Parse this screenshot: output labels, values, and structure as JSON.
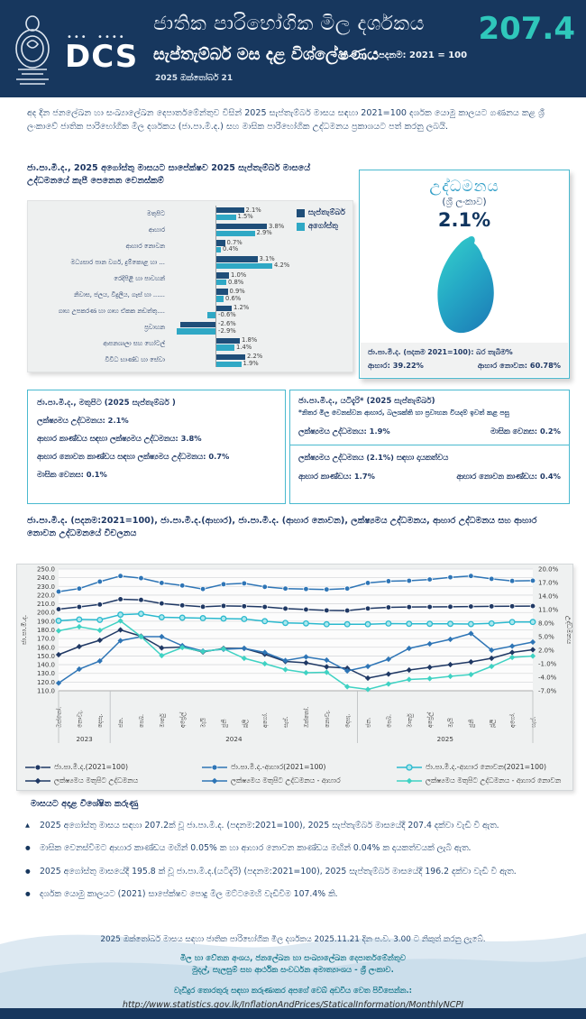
{
  "header": {
    "logo_text": "DCS",
    "title_line1": "ජාතික පාරිභෝගික මිල දර්ශකය",
    "title_line2": "සැප්තැම්බර් මස දළ විශ්ලේෂණය",
    "base_label": "පදනම: 2021 = 100",
    "date": "2025 ඔක්තෝබර් 21",
    "index_value": "207.4"
  },
  "intro": {
    "text": "අද දින ජනලේඛන හා සංඛ්‍යාලේඛන දෙපාර්තමේන්තුව විසින් 2025 සැප්තැම්බර් මාසය සඳහා 2021=100 දර්ශක යොමු කාලයට ගණනය කළ ශ්‍රී ලංකාවේ ජාතික පාරිභෝගික මිල දර්ශකය (ජා.පා.මි.ද.) සහ මාසික පාරිභෝගික උද්ධමනය ප්‍රකාශයට පත් කරනු ලබයි."
  },
  "bar_section": {
    "heading": "ජා.පා.මි.ද., 2025 අගෝස්තු මාසයට සාපේක්ෂව 2025 සැප්තැම්බර් මාසයේ උද්ධමනයේ කැපී පෙනෙන වෙනස්කම්",
    "legend": [
      "සැප්තැම්බර්",
      "අගෝස්තු"
    ],
    "colors": {
      "september": "#1f4e79",
      "august": "#2fa8c5"
    },
    "categories": [
      {
        "label": "මතුපිට",
        "sep": 2.1,
        "aug": 1.5
      },
      {
        "label": "ආහාර",
        "sep": 3.8,
        "aug": 2.9
      },
      {
        "label": "ආහාර නොවන",
        "sep": 0.7,
        "aug": 0.4
      },
      {
        "label": "මධ්‍යසාර පාන වර්ග, දුම්කොළ හා ...",
        "sep": 3.1,
        "aug": 4.2
      },
      {
        "label": "රෙදිපිළි හා පාවහන්",
        "sep": 1.0,
        "aug": 0.8
      },
      {
        "label": "නිවාස, ජලය, විදුලිය, ගෑස් හා ......",
        "sep": 0.9,
        "aug": 0.6
      },
      {
        "label": "ගෘහ උපකරණ හා ගෘහ ඒකක නඩත්තු....",
        "sep": 1.2,
        "aug": -0.6
      },
      {
        "label": "ප්‍රවාහන",
        "sep": -2.6,
        "aug": -2.9
      },
      {
        "label": "ආපනශාලා සහ හෝටල්",
        "sep": 1.8,
        "aug": 1.4
      },
      {
        "label": "විවිධ භාණ්ඩ හා සේවා",
        "sep": 2.2,
        "aug": 1.9
      }
    ]
  },
  "inflation_box": {
    "title": "උද්ධමනය",
    "subtitle": "(ශ්‍රී ලංකාව)",
    "value": "2.1%",
    "map_icon": "sri-lanka-map-icon",
    "weights_line": "ජා.පා.මි.ද. (පදනම 2021=100): බර තැබීම%",
    "food_weight": "ආහාර: 39.22%",
    "nonfood_weight": "ආහාර නොවන: 60.78%"
  },
  "headline_box": {
    "title": "ජා.පා.මි.ද., මතුපිට (2025 සැප්තැම්බර් )",
    "line1": "ලක්ෂ්‍යමය උද්ධමනය: 2.1%",
    "line2": "ආහාර කාණ්ඩය සඳහා ලක්ෂ්‍යමය උද්ධමනය: 3.8%",
    "line3": "ආහාර නොවන කාණ්ඩය සඳහා ලක්ෂ්‍යමය උද්ධමනය: 0.7%",
    "line4": "මාසික වෙනස: 0.1%"
  },
  "core_box": {
    "title": "ජා.පා.මි.ද., යටිදැරි* (2025 සැප්තැම්බර්)",
    "note": "*නිතර මිල වෙනස්වන ආහාර, බලශක්ති හා ප්‍රවාහන වියදම් ඉවත් කළ පසු",
    "line1a": "ලක්ෂ්‍යමය උද්ධමනය: 1.9%",
    "line1b": "මාසික වෙනස: 0.2%",
    "section2_title": "ලක්ෂ්‍යමය උද්ධමනය (2.1%) සඳහා දායකත්වය",
    "line2a": "ආහාර කාණ්ඩය: 1.7%",
    "line2b": "ආහාර නොවන කාණ්ඩය: 0.4%"
  },
  "line_section": {
    "heading": "ජා.පා.මි.ද. (පදනම:2021=100), ජා.පා.මි.ද.(ආහාර), ජා.පා.මි.ද. (ආහාර නොවන), ලක්ෂ්‍යමය උද්ධමනය, ආහාර උද්ධමනය සහ ආහාර නොවන උද්ධමනයේ විචලනය"
  },
  "chart_data": {
    "type": "line",
    "x": [
      "ඔක්තෝ.",
      "නොවැ.",
      "දෙසැ.",
      "ජන.",
      "පෙබ.",
      "මාර්තු",
      "අප්‍රේල්",
      "මැයි",
      "ජුනි",
      "ජූලි",
      "අගෝ.",
      "සැප්.",
      "ඔක්තෝ.",
      "නොවැ.",
      "දෙසැ.",
      "ජන.",
      "පෙබ.",
      "මාර්තු",
      "අප්‍රේල්",
      "මැයි",
      "ජුනි",
      "ජූලි",
      "අගෝ.",
      "සැප්."
    ],
    "year_groups": [
      {
        "label": "2023",
        "count": 3
      },
      {
        "label": "2024",
        "count": 12
      },
      {
        "label": "2025",
        "count": 9
      }
    ],
    "axes": {
      "left": {
        "label": "ජා.පා.මි.ද.",
        "min": 110,
        "max": 250,
        "step": 10,
        "format": "number"
      },
      "right": {
        "label": "උද්ධමනය",
        "min": -7,
        "max": 20,
        "step": 3,
        "format": "percent"
      }
    },
    "grid": true,
    "legend_position": "bottom",
    "series": [
      {
        "name": "ජා.පා.මි.ද.(2021=100)",
        "axis": "left",
        "values": [
          203.8,
          206.4,
          209.2,
          215.3,
          214.5,
          210.4,
          208.2,
          206.6,
          207.6,
          207.2,
          206.4,
          204.5,
          203.4,
          202.4,
          202.2,
          204.6,
          205.9,
          206.3,
          206.4,
          206.6,
          206.9,
          207.1,
          207.2,
          207.4
        ]
      },
      {
        "name": "ජා.පා.මි.ද.-ආහාර(2021=100)",
        "axis": "left",
        "values": [
          224.0,
          227.5,
          235.5,
          242.0,
          239.5,
          234.0,
          231.0,
          227.0,
          232.5,
          233.5,
          229.5,
          227.5,
          227.0,
          226.5,
          227.5,
          234.0,
          236.0,
          236.5,
          238.0,
          240.5,
          242.0,
          238.7,
          236.3,
          236.6
        ]
      },
      {
        "name": "ජා.පා.මි.ද.-ආහාර නොවන(2021=100)",
        "axis": "left",
        "values": [
          190.5,
          192.0,
          191.5,
          197.5,
          198.5,
          194.5,
          194.0,
          193.5,
          193.0,
          192.5,
          190.0,
          188.0,
          187.5,
          186.5,
          186.5,
          186.5,
          187.3,
          187.0,
          187.0,
          187.0,
          186.7,
          187.5,
          189.0,
          189.1
        ]
      },
      {
        "name": "ලක්ෂ්‍යමය මතුපිට උද්ධමනය",
        "axis": "right",
        "values": [
          1.0,
          2.8,
          4.2,
          6.5,
          5.1,
          2.5,
          2.7,
          1.6,
          2.4,
          2.4,
          1.1,
          -0.5,
          -0.8,
          -1.7,
          -2.0,
          -4.2,
          -3.3,
          -2.4,
          -1.8,
          -1.2,
          -0.6,
          0.2,
          1.5,
          2.1
        ]
      },
      {
        "name": "ලක්ෂ්‍යමය මතුපිට උද්ධමනය - ආහාර",
        "axis": "right",
        "values": [
          -5.3,
          -2.2,
          -0.4,
          4.1,
          5.0,
          5.0,
          3.0,
          1.8,
          2.2,
          2.4,
          1.5,
          -0.3,
          0.5,
          -0.2,
          -2.6,
          -1.6,
          0.0,
          2.4,
          3.4,
          4.4,
          5.7,
          2.0,
          2.9,
          3.8
        ]
      },
      {
        "name": "ලක්ෂ්‍යමය මතුපිට උද්ධමනය - ආහාර නොවන",
        "axis": "right",
        "values": [
          6.3,
          7.2,
          6.4,
          8.5,
          5.0,
          0.8,
          2.6,
          1.7,
          2.3,
          0.2,
          -1.0,
          -2.3,
          -3.0,
          -2.9,
          -6.1,
          -6.7,
          -5.5,
          -4.5,
          -4.3,
          -3.8,
          -3.4,
          -1.6,
          0.4,
          0.7
        ]
      }
    ]
  },
  "bullets": {
    "heading": "මාසයට අදාළ විශේෂිත කරුණු",
    "items": [
      {
        "marker": "▲",
        "text": "2025 අගෝස්තු මාසය සඳහා 207.2ක් වූ ජා.පා.මි.ද. (පදනම:2021=100), 2025 සැප්තැම්බර් මාසයේදී 207.4 දක්වා වැඩි වී ඇත."
      },
      {
        "marker": "●",
        "text": "මාසික වෙනස්වීමට ආහාර කාණ්ඩය මඟින් 0.05% ක හා ආහාර නොවන කාණ්ඩය මඟින් 0.04% ක දායකත්වයක් ලැබී ඇත."
      },
      {
        "marker": "●",
        "text": "2025 අගෝස්තු මාසයේදී 195.8 ක් වූ ජා.පා.මි.ද.(යටිදැරි) (පදනම:2021=100), 2025 සැප්තැම්බර් මාසයේදී 196.2 දක්වා වැඩි වී ඇත."
      },
      {
        "marker": "●",
        "text": "දර්ශක යොමු කාලයට (2021) සාපේක්ෂව පොදු මිල මට්ටමෙහි වැඩිවීම 107.4% කි."
      }
    ]
  },
  "footer": {
    "release": "2025 ඔක්තෝබර් මාසය සඳහා ජාතික පාරිභෝගික මිල දර්ශකය 2025.11.21 දින ප.ව. 3.00 ට නිකුත් කරනු ලැබේ.",
    "dept1": "මිල හා වේතන අංශය, ජනලේඛන හා සංඛ්‍යාලේඛන දෙපාර්තමේන්තුව",
    "dept2": "මුදල්, සැලසුම් සහ ආර්ථික සංවර්ධන අමාත්‍යාංශය - ශ්‍රී ලංකාව.",
    "more_info": "වැඩිදුර තොරතුරු සඳහා කරුණාකර අපගේ වෙබ් අඩවිය වෙත පිවිසෙන්න.:",
    "url": "http://www.statistics.gov.lk/InflationAndPrices/StaticalInformation/MonthlyNCPI"
  }
}
